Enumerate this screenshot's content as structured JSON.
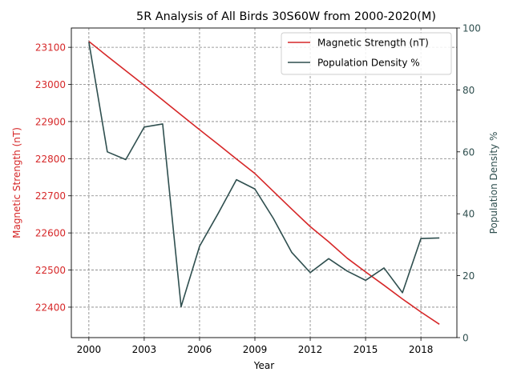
{
  "chart_data": {
    "type": "line",
    "title": "5R Analysis of All Birds 30S60W from 2000-2020(M)",
    "xlabel": "Year",
    "ylabel_left": "Magnetic Strength (nT)",
    "ylabel_right": "Population Density %",
    "x_ticks": [
      2000,
      2003,
      2006,
      2009,
      2012,
      2015,
      2018
    ],
    "xlim": [
      1999.05,
      2019.95
    ],
    "ylim_left": [
      22318,
      23152
    ],
    "y_ticks_left": [
      22400,
      22500,
      22600,
      22700,
      22800,
      22900,
      23000,
      23100
    ],
    "ylim_right": [
      0,
      100
    ],
    "y_ticks_right": [
      0,
      20,
      40,
      60,
      80,
      100
    ],
    "grid": true,
    "legend": "top-right",
    "series": [
      {
        "name": "Magnetic Strength (nT)",
        "axis": "left",
        "color": "#d62728",
        "x": [
          2000,
          2001,
          2002,
          2003,
          2004,
          2005,
          2006,
          2007,
          2008,
          2009,
          2010,
          2011,
          2012,
          2013,
          2014,
          2015,
          2016,
          2017,
          2018,
          2019
        ],
        "y": [
          23116,
          23076,
          23037,
          22998,
          22958,
          22918,
          22878,
          22839,
          22799,
          22760,
          22712,
          22664,
          22617,
          22576,
          22532,
          22495,
          22459,
          22422,
          22387,
          22354
        ]
      },
      {
        "name": "Population Density %",
        "axis": "right",
        "color": "#2f4f4f",
        "x": [
          2000,
          2001,
          2002,
          2003,
          2004,
          2005,
          2006,
          2007,
          2008,
          2009,
          2010,
          2011,
          2012,
          2013,
          2014,
          2015,
          2016,
          2017,
          2018,
          2019
        ],
        "y": [
          95.5,
          60,
          57.5,
          68,
          69,
          10,
          29.5,
          40,
          51,
          48,
          38.5,
          27.5,
          21,
          25.5,
          21.5,
          18.5,
          22.5,
          14.5,
          32,
          32.2
        ]
      }
    ]
  }
}
